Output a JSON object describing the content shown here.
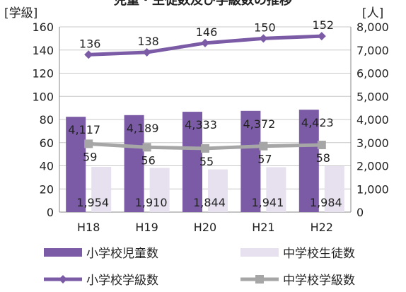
{
  "chart_data": {
    "type": "bar+line",
    "title": "児童・生徒数及び学級数の推移",
    "categories": [
      "H18",
      "H19",
      "H20",
      "H21",
      "H22"
    ],
    "left_axis": {
      "unit_label": "[学級]",
      "min": 0,
      "max": 160,
      "step": 20,
      "ticks": [
        "0",
        "20",
        "40",
        "60",
        "80",
        "100",
        "120",
        "140",
        "160"
      ]
    },
    "right_axis": {
      "unit_label": "[人]",
      "min": 0,
      "max": 8000,
      "step": 1000,
      "ticks": [
        "0",
        "1,000",
        "2,000",
        "3,000",
        "4,000",
        "5,000",
        "6,000",
        "7,000",
        "8,000"
      ]
    },
    "series": [
      {
        "name": "小学校児童数",
        "kind": "bar",
        "axis": "right",
        "color": "#7b5ba6",
        "values": [
          4117,
          4189,
          4333,
          4372,
          4423
        ],
        "labels": [
          "4,117",
          "4,189",
          "4,333",
          "4,372",
          "4,423"
        ]
      },
      {
        "name": "中学校生徒数",
        "kind": "bar",
        "axis": "right",
        "color": "#e6e0ef",
        "values": [
          1954,
          1910,
          1844,
          1941,
          1984
        ],
        "labels": [
          "1,954",
          "1,910",
          "1,844",
          "1,941",
          "1,984"
        ]
      },
      {
        "name": "小学校学級数",
        "kind": "line",
        "axis": "left",
        "color": "#7b5ba6",
        "marker": "diamond",
        "values": [
          136,
          138,
          146,
          150,
          152
        ],
        "labels": [
          "136",
          "138",
          "146",
          "150",
          "152"
        ]
      },
      {
        "name": "中学校学級数",
        "kind": "line",
        "axis": "left",
        "color": "#a6a6a6",
        "marker": "square",
        "values": [
          59,
          56,
          55,
          57,
          58
        ],
        "labels": [
          "59",
          "56",
          "55",
          "57",
          "58"
        ]
      }
    ],
    "grid": true,
    "legend_position": "bottom"
  }
}
